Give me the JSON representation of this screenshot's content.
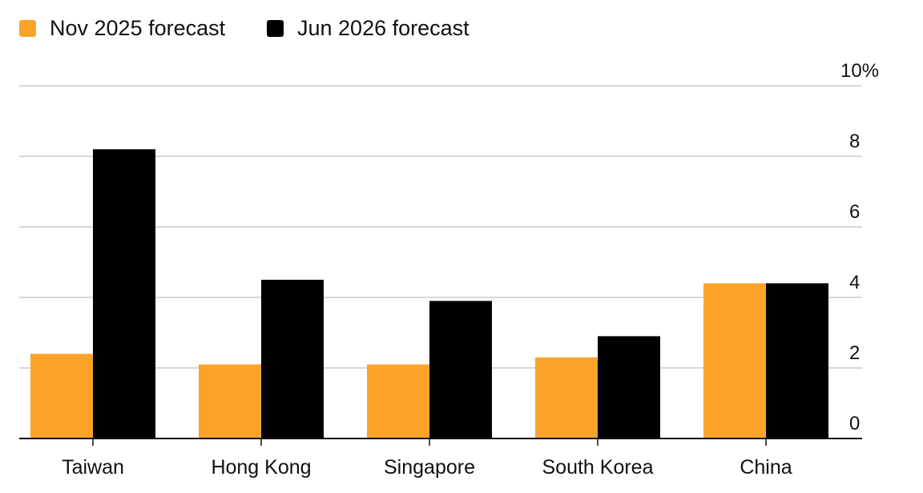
{
  "chart_data": {
    "type": "bar",
    "categories": [
      "Taiwan",
      "Hong Kong",
      "Singapore",
      "South Korea",
      "China"
    ],
    "series": [
      {
        "name": "Nov 2025 forecast",
        "color": "#FCA42A",
        "values": [
          2.4,
          2.1,
          2.1,
          2.3,
          4.4
        ]
      },
      {
        "name": "Jun 2026 forecast",
        "color": "#000000",
        "values": [
          8.2,
          4.5,
          3.9,
          2.9,
          4.4
        ]
      }
    ],
    "y_axis": {
      "min": 0,
      "max": 10,
      "ticks": [
        {
          "value": 0,
          "label": "0"
        },
        {
          "value": 2,
          "label": "2"
        },
        {
          "value": 4,
          "label": "4"
        },
        {
          "value": 6,
          "label": "6"
        },
        {
          "value": 8,
          "label": "8"
        },
        {
          "value": 10,
          "label": "10%"
        }
      ],
      "position": "right"
    },
    "grid": true,
    "legend_position": "top-left"
  }
}
